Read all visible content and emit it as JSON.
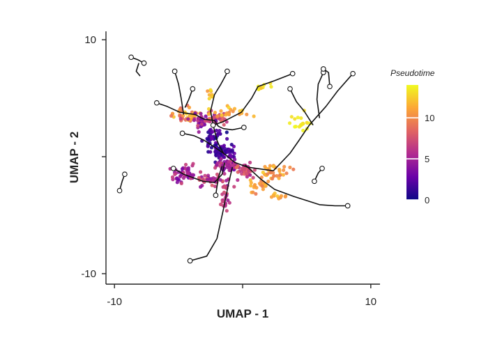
{
  "chart_data": {
    "type": "scatter",
    "title": "",
    "xlabel": "UMAP - 1",
    "ylabel": "UMAP - 2",
    "xlim": [
      -10.5,
      10.5
    ],
    "ylim": [
      -10.3,
      10.3
    ],
    "xticks": [
      -10,
      0,
      10
    ],
    "xtick_labels": [
      "-10",
      "",
      "10"
    ],
    "yticks": [
      -10,
      0,
      10
    ],
    "ytick_labels": [
      "-10",
      "",
      "10"
    ],
    "grid": false,
    "legend": {
      "title": "Pseudotime",
      "placement": "right",
      "range": [
        0,
        14
      ],
      "ticks": [
        0,
        5,
        10
      ],
      "tick_labels": [
        "0",
        "5",
        "10"
      ],
      "colors": [
        "#0d0887",
        "#6a00a8",
        "#b12a90",
        "#e16462",
        "#fca636",
        "#f0f921"
      ]
    },
    "trajectory_segments": [
      [
        [
          -4.7,
          2.0
        ],
        [
          -3.8,
          1.8
        ],
        [
          -3.0,
          1.4
        ],
        [
          -2.3,
          0.9
        ],
        [
          -1.5,
          0.3
        ],
        [
          -0.6,
          -0.5
        ],
        [
          0.4,
          -0.9
        ],
        [
          2.4,
          -1.2
        ]
      ],
      [
        [
          -1.5,
          0.3
        ],
        [
          -1.8,
          0.9
        ],
        [
          -2.0,
          1.4
        ],
        [
          -2.3,
          2.7
        ]
      ],
      [
        [
          -6.7,
          4.6
        ],
        [
          -5.9,
          4.3
        ],
        [
          -4.9,
          3.8
        ],
        [
          -3.7,
          3.6
        ],
        [
          -3.0,
          3.2
        ],
        [
          -2.2,
          3.1
        ]
      ],
      [
        [
          -2.2,
          3.1
        ],
        [
          -1.9,
          2.6
        ],
        [
          -1.5,
          2.4
        ],
        [
          -0.8,
          2.3
        ],
        [
          0.1,
          2.5
        ]
      ],
      [
        [
          -2.3,
          2.7
        ],
        [
          -1.5,
          3.0
        ],
        [
          -0.1,
          3.8
        ],
        [
          0.7,
          5.0
        ],
        [
          1.2,
          6.0
        ],
        [
          2.5,
          6.5
        ],
        [
          3.9,
          7.1
        ]
      ],
      [
        [
          -5.3,
          7.3
        ],
        [
          -5.0,
          6.2
        ],
        [
          -4.8,
          5.0
        ],
        [
          -4.6,
          3.6
        ]
      ],
      [
        [
          -3.9,
          5.8
        ],
        [
          -4.2,
          4.9
        ],
        [
          -4.5,
          4.2
        ]
      ],
      [
        [
          -2.3,
          2.7
        ],
        [
          -2.5,
          3.9
        ],
        [
          -2.2,
          5.3
        ],
        [
          -1.7,
          6.2
        ],
        [
          -1.3,
          7.0
        ],
        [
          -1.2,
          7.3
        ]
      ],
      [
        [
          2.4,
          -1.2
        ],
        [
          3.7,
          0.3
        ],
        [
          4.4,
          1.4
        ],
        [
          5.2,
          2.7
        ],
        [
          6.5,
          4.3
        ],
        [
          7.4,
          5.6
        ],
        [
          8.6,
          7.1
        ]
      ],
      [
        [
          6.0,
          3.3
        ],
        [
          5.8,
          4.9
        ],
        [
          5.9,
          6.2
        ],
        [
          6.3,
          7.2
        ]
      ],
      [
        [
          5.5,
          2.7
        ],
        [
          4.8,
          3.9
        ],
        [
          4.2,
          4.7
        ],
        [
          3.7,
          5.8
        ]
      ],
      [
        [
          -1.4,
          -0.5
        ],
        [
          -1.6,
          -1.5
        ],
        [
          -2.2,
          -2.2
        ],
        [
          -3.1,
          -2.1
        ],
        [
          -4.6,
          -1.5
        ],
        [
          -5.4,
          -1.0
        ]
      ],
      [
        [
          -1.6,
          -0.8
        ],
        [
          -1.9,
          -1.8
        ],
        [
          -2.1,
          -3.3
        ]
      ],
      [
        [
          0.2,
          -0.7
        ],
        [
          1.4,
          -1.9
        ],
        [
          2.5,
          -2.8
        ],
        [
          4.0,
          -3.4
        ],
        [
          6.0,
          -4.1
        ],
        [
          7.2,
          -4.2
        ],
        [
          8.2,
          -4.2
        ]
      ],
      [
        [
          -0.8,
          -0.9
        ],
        [
          -1.1,
          -2.3
        ],
        [
          -1.5,
          -4.5
        ],
        [
          -2.0,
          -7.0
        ],
        [
          -2.8,
          -8.5
        ],
        [
          -4.1,
          -8.9
        ]
      ],
      [
        [
          -8.7,
          8.5
        ],
        [
          -8.2,
          8.3
        ],
        [
          -7.7,
          8.0
        ]
      ],
      [
        [
          -8.1,
          8.0
        ],
        [
          -8.3,
          7.3
        ],
        [
          -8.0,
          6.9
        ]
      ],
      [
        [
          -9.2,
          -1.5
        ],
        [
          -9.4,
          -2.1
        ],
        [
          -9.6,
          -2.9
        ]
      ],
      [
        [
          6.3,
          7.5
        ],
        [
          6.7,
          7.2
        ],
        [
          6.8,
          6.0
        ]
      ],
      [
        [
          6.2,
          -1.0
        ],
        [
          5.9,
          -1.4
        ],
        [
          5.6,
          -2.1
        ]
      ]
    ],
    "trajectory_endpoints": [
      [
        -4.7,
        2.0
      ],
      [
        -2.3,
        2.7
      ],
      [
        -6.7,
        4.6
      ],
      [
        0.1,
        2.5
      ],
      [
        3.9,
        7.1
      ],
      [
        -5.3,
        7.3
      ],
      [
        -3.9,
        5.8
      ],
      [
        -1.2,
        7.3
      ],
      [
        8.6,
        7.1
      ],
      [
        6.3,
        7.2
      ],
      [
        3.7,
        5.8
      ],
      [
        -5.4,
        -1.0
      ],
      [
        -2.1,
        -3.3
      ],
      [
        8.2,
        -4.2
      ],
      [
        -4.1,
        -8.9
      ],
      [
        -8.7,
        8.5
      ],
      [
        -7.7,
        8.0
      ],
      [
        -9.2,
        -1.5
      ],
      [
        -9.6,
        -2.9
      ],
      [
        6.3,
        7.5
      ],
      [
        6.8,
        6.0
      ],
      [
        6.2,
        -1.0
      ],
      [
        5.6,
        -2.1
      ]
    ],
    "clusters": [
      {
        "center": [
          -4.4,
          3.6
        ],
        "spread": [
          1.0,
          0.6
        ],
        "count": 45,
        "pseudotime": [
          8,
          13
        ]
      },
      {
        "center": [
          -3.1,
          3.1
        ],
        "spread": [
          0.9,
          0.6
        ],
        "count": 40,
        "pseudotime": [
          3,
          7
        ]
      },
      {
        "center": [
          -2.1,
          3.3
        ],
        "spread": [
          0.9,
          0.5
        ],
        "count": 25,
        "pseudotime": [
          6,
          10
        ]
      },
      {
        "center": [
          -2.3,
          1.7
        ],
        "spread": [
          0.6,
          0.9
        ],
        "count": 45,
        "pseudotime": [
          0,
          3
        ]
      },
      {
        "center": [
          -1.4,
          0.4
        ],
        "spread": [
          0.9,
          0.7
        ],
        "count": 60,
        "pseudotime": [
          0,
          3
        ]
      },
      {
        "center": [
          -1.1,
          -0.8
        ],
        "spread": [
          1.0,
          0.5
        ],
        "count": 50,
        "pseudotime": [
          3,
          7
        ]
      },
      {
        "center": [
          -4.5,
          -1.5
        ],
        "spread": [
          0.9,
          0.8
        ],
        "count": 55,
        "pseudotime": [
          3,
          7
        ]
      },
      {
        "center": [
          -2.6,
          -2.0
        ],
        "spread": [
          0.8,
          0.6
        ],
        "count": 30,
        "pseudotime": [
          4,
          8
        ]
      },
      {
        "center": [
          0.3,
          -1.1
        ],
        "spread": [
          0.7,
          0.6
        ],
        "count": 35,
        "pseudotime": [
          5,
          9
        ]
      },
      {
        "center": [
          2.3,
          -1.2
        ],
        "spread": [
          1.0,
          0.5
        ],
        "count": 35,
        "pseudotime": [
          9,
          13
        ]
      },
      {
        "center": [
          1.3,
          -2.5
        ],
        "spread": [
          0.8,
          0.6
        ],
        "count": 25,
        "pseudotime": [
          9,
          12
        ]
      },
      {
        "center": [
          2.8,
          -3.3
        ],
        "spread": [
          0.6,
          0.4
        ],
        "count": 10,
        "pseudotime": [
          10,
          13
        ]
      },
      {
        "center": [
          -1.3,
          -3.3
        ],
        "spread": [
          0.4,
          1.3
        ],
        "count": 30,
        "pseudotime": [
          4,
          8
        ]
      },
      {
        "center": [
          -1.0,
          3.8
        ],
        "spread": [
          1.6,
          0.4
        ],
        "count": 25,
        "pseudotime": [
          10,
          13
        ]
      },
      {
        "center": [
          -2.5,
          5.1
        ],
        "spread": [
          0.3,
          0.8
        ],
        "count": 10,
        "pseudotime": [
          10,
          13
        ]
      },
      {
        "center": [
          1.5,
          6.0
        ],
        "spread": [
          0.8,
          0.4
        ],
        "count": 10,
        "pseudotime": [
          12,
          14
        ]
      },
      {
        "center": [
          4.7,
          3.0
        ],
        "spread": [
          0.7,
          0.9
        ],
        "count": 20,
        "pseudotime": [
          13,
          14
        ]
      }
    ]
  }
}
